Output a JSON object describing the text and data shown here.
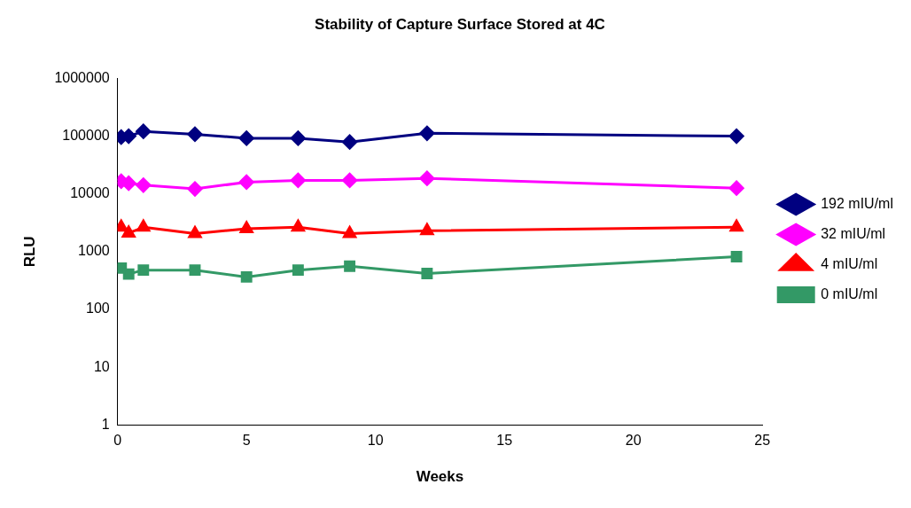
{
  "chart_data": {
    "type": "line",
    "title": "Stability of Capture Surface Stored at 4C",
    "xlabel": "Weeks",
    "ylabel": "RLU",
    "x": [
      0.14,
      0.43,
      1,
      3,
      5,
      7,
      9,
      12,
      24
    ],
    "series": [
      {
        "name": "192 mIU/ml",
        "color": "#000080",
        "marker": "diamond",
        "values": [
          96000,
          100000,
          121000,
          108000,
          92000,
          92000,
          79000,
          112000,
          100000
        ]
      },
      {
        "name": "32 mIU/ml",
        "color": "#ff00ff",
        "marker": "diamond",
        "values": [
          16600,
          15300,
          14200,
          12200,
          16000,
          17200,
          17200,
          18600,
          12600
        ]
      },
      {
        "name": "4 mIU/ml",
        "color": "#ff0000",
        "marker": "triangle",
        "values": [
          2650,
          2100,
          2650,
          2050,
          2500,
          2650,
          2050,
          2300,
          2650
        ]
      },
      {
        "name": "0 mIU/ml",
        "color": "#339966",
        "marker": "square",
        "values": [
          520,
          410,
          480,
          480,
          365,
          480,
          560,
          420,
          820
        ]
      }
    ],
    "log": "y",
    "xlim": [
      0,
      25
    ],
    "xticks": [
      0,
      5,
      10,
      15,
      20,
      25
    ],
    "ylim": [
      1,
      1000000
    ],
    "yticks": [
      1,
      10,
      100,
      1000,
      10000,
      100000,
      1000000
    ],
    "grid": false,
    "legend": "right",
    "line_style": "solid"
  }
}
